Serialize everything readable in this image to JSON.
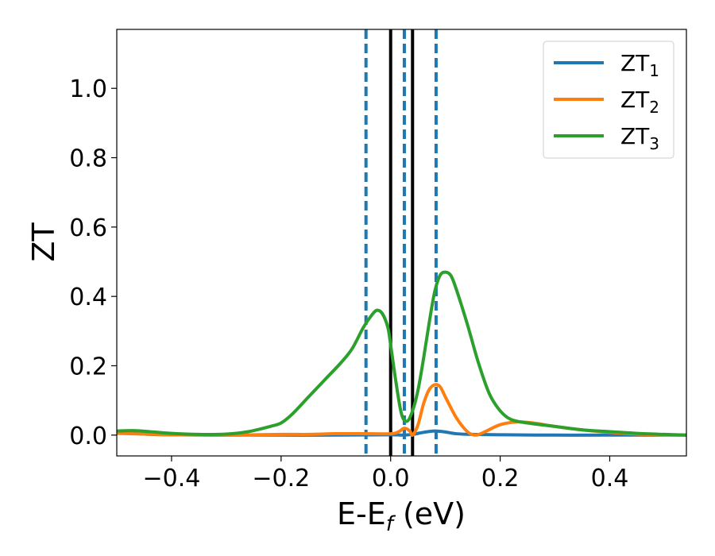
{
  "chart_data": {
    "type": "line",
    "xlabel": "E-E",
    "xlabel_sub": "f",
    "xlabel_unit": " (eV)",
    "ylabel": "ZT",
    "xlim": [
      -0.5,
      0.54
    ],
    "ylim": [
      -0.06,
      1.17
    ],
    "xticks": [
      -0.4,
      -0.2,
      0.0,
      0.2,
      0.4
    ],
    "xtick_labels": [
      "−0.4",
      "−0.2",
      "0.0",
      "0.2",
      "0.4"
    ],
    "yticks": [
      0.0,
      0.2,
      0.4,
      0.6,
      0.8,
      1.0
    ],
    "ytick_labels": [
      "0.0",
      "0.2",
      "0.4",
      "0.6",
      "0.8",
      "1.0"
    ],
    "grid": false,
    "legend_position": "top-right",
    "vertical_lines": [
      {
        "x": -0.045,
        "style": "dashed",
        "color": "#1f77b4"
      },
      {
        "x": 0.0,
        "style": "solid",
        "color": "#000000"
      },
      {
        "x": 0.025,
        "style": "dashed",
        "color": "#1f77b4"
      },
      {
        "x": 0.04,
        "style": "solid",
        "color": "#000000"
      },
      {
        "x": 0.083,
        "style": "dashed",
        "color": "#1f77b4"
      }
    ],
    "series": [
      {
        "name": "ZT",
        "name_sub": "1",
        "color": "#1f77b4",
        "points": [
          [
            -0.5,
            0.01
          ],
          [
            -0.45,
            0.003
          ],
          [
            -0.4,
            0.001
          ],
          [
            -0.3,
            0.0
          ],
          [
            -0.2,
            0.0
          ],
          [
            -0.1,
            0.0
          ],
          [
            0.0,
            0.001
          ],
          [
            0.02,
            0.0
          ],
          [
            0.04,
            0.002
          ],
          [
            0.06,
            0.008
          ],
          [
            0.08,
            0.012
          ],
          [
            0.1,
            0.009
          ],
          [
            0.12,
            0.004
          ],
          [
            0.15,
            0.002
          ],
          [
            0.2,
            0.001
          ],
          [
            0.3,
            0.0
          ],
          [
            0.4,
            0.0
          ],
          [
            0.54,
            0.0
          ]
        ]
      },
      {
        "name": "ZT",
        "name_sub": "2",
        "color": "#ff7f0e",
        "points": [
          [
            -0.5,
            0.005
          ],
          [
            -0.45,
            0.003
          ],
          [
            -0.4,
            0.001
          ],
          [
            -0.3,
            0.0
          ],
          [
            -0.2,
            0.002
          ],
          [
            -0.15,
            0.002
          ],
          [
            -0.1,
            0.004
          ],
          [
            -0.05,
            0.004
          ],
          [
            0.0,
            0.004
          ],
          [
            0.015,
            0.01
          ],
          [
            0.025,
            0.02
          ],
          [
            0.035,
            0.012
          ],
          [
            0.04,
            0.0
          ],
          [
            0.05,
            0.03
          ],
          [
            0.06,
            0.09
          ],
          [
            0.07,
            0.13
          ],
          [
            0.08,
            0.145
          ],
          [
            0.09,
            0.14
          ],
          [
            0.1,
            0.11
          ],
          [
            0.12,
            0.05
          ],
          [
            0.14,
            0.01
          ],
          [
            0.155,
            0.0
          ],
          [
            0.17,
            0.008
          ],
          [
            0.2,
            0.03
          ],
          [
            0.23,
            0.038
          ],
          [
            0.26,
            0.035
          ],
          [
            0.3,
            0.025
          ],
          [
            0.35,
            0.015
          ],
          [
            0.4,
            0.008
          ],
          [
            0.45,
            0.003
          ],
          [
            0.5,
            0.001
          ],
          [
            0.54,
            0.0
          ]
        ]
      },
      {
        "name": "ZT",
        "name_sub": "3",
        "color": "#2ca02c",
        "points": [
          [
            -0.5,
            0.012
          ],
          [
            -0.47,
            0.013
          ],
          [
            -0.44,
            0.01
          ],
          [
            -0.4,
            0.005
          ],
          [
            -0.35,
            0.002
          ],
          [
            -0.3,
            0.003
          ],
          [
            -0.26,
            0.01
          ],
          [
            -0.22,
            0.025
          ],
          [
            -0.2,
            0.035
          ],
          [
            -0.18,
            0.06
          ],
          [
            -0.15,
            0.11
          ],
          [
            -0.12,
            0.16
          ],
          [
            -0.09,
            0.21
          ],
          [
            -0.07,
            0.25
          ],
          [
            -0.05,
            0.31
          ],
          [
            -0.035,
            0.345
          ],
          [
            -0.025,
            0.36
          ],
          [
            -0.015,
            0.35
          ],
          [
            -0.005,
            0.31
          ],
          [
            0.0,
            0.26
          ],
          [
            0.01,
            0.15
          ],
          [
            0.02,
            0.06
          ],
          [
            0.03,
            0.04
          ],
          [
            0.04,
            0.07
          ],
          [
            0.05,
            0.13
          ],
          [
            0.06,
            0.22
          ],
          [
            0.07,
            0.32
          ],
          [
            0.08,
            0.41
          ],
          [
            0.09,
            0.46
          ],
          [
            0.1,
            0.47
          ],
          [
            0.11,
            0.46
          ],
          [
            0.12,
            0.42
          ],
          [
            0.14,
            0.32
          ],
          [
            0.16,
            0.21
          ],
          [
            0.18,
            0.12
          ],
          [
            0.2,
            0.07
          ],
          [
            0.22,
            0.045
          ],
          [
            0.25,
            0.035
          ],
          [
            0.3,
            0.025
          ],
          [
            0.35,
            0.015
          ],
          [
            0.4,
            0.01
          ],
          [
            0.45,
            0.005
          ],
          [
            0.5,
            0.002
          ],
          [
            0.54,
            0.0
          ]
        ]
      }
    ]
  }
}
